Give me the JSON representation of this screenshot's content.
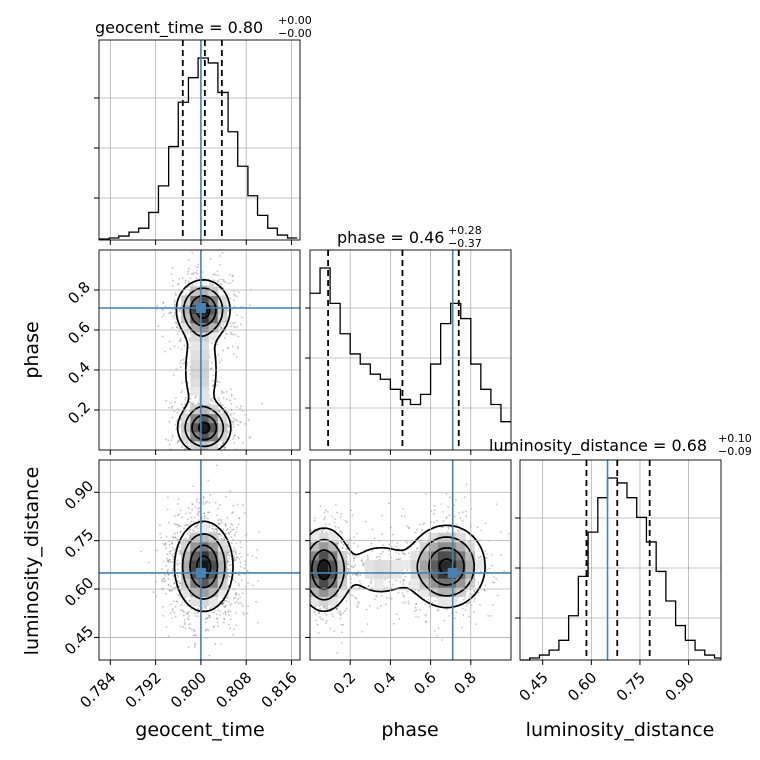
{
  "chart_data": {
    "type": "corner",
    "parameters": [
      "geocent_time",
      "phase",
      "luminosity_distance"
    ],
    "titles": [
      {
        "text": "geocent_time = 0.80",
        "plus": "+0.00",
        "minus": "−0.00"
      },
      {
        "text": "phase = 0.46",
        "plus": "+0.28",
        "minus": "−0.37"
      },
      {
        "text": "luminosity_distance = 0.68",
        "plus": "+0.10",
        "minus": "−0.09"
      }
    ],
    "truths": [
      0.8,
      0.71,
      0.65
    ],
    "truth_color": "#4682b4",
    "ranges": [
      [
        0.782,
        0.8175
      ],
      [
        0.0,
        1.0
      ],
      [
        0.38,
        1.0
      ]
    ],
    "ticks": {
      "geocent_time": [
        "0.784",
        "0.792",
        "0.800",
        "0.808",
        "0.816"
      ],
      "phase": [
        "0.2",
        "0.4",
        "0.6",
        "0.8"
      ],
      "luminosity_distance": [
        "0.45",
        "0.60",
        "0.75",
        "0.90"
      ]
    },
    "tick_values": {
      "geocent_time": [
        0.784,
        0.792,
        0.8,
        0.808,
        0.816
      ],
      "phase": [
        0.2,
        0.4,
        0.6,
        0.8
      ],
      "luminosity_distance": [
        0.45,
        0.6,
        0.75,
        0.9
      ]
    },
    "quantiles": {
      "geocent_time": [
        0.7968,
        0.8007,
        0.8037
      ],
      "phase": [
        0.09,
        0.46,
        0.74
      ],
      "luminosity_distance": [
        0.585,
        0.68,
        0.78
      ]
    },
    "histograms": {
      "geocent_time": {
        "edges": [
          0.782,
          0.7838,
          0.7855,
          0.7873,
          0.789,
          0.7908,
          0.7925,
          0.7943,
          0.796,
          0.7978,
          0.7995,
          0.8013,
          0.803,
          0.8048,
          0.8065,
          0.8083,
          0.81,
          0.8118,
          0.8135,
          0.8153,
          0.817
        ],
        "counts": [
          1,
          2,
          4,
          8,
          12,
          28,
          55,
          95,
          140,
          165,
          185,
          180,
          150,
          110,
          75,
          45,
          25,
          12,
          5,
          2
        ]
      },
      "phase": {
        "edges": [
          0.0,
          0.05,
          0.1,
          0.15,
          0.2,
          0.25,
          0.3,
          0.35,
          0.4,
          0.45,
          0.5,
          0.55,
          0.6,
          0.65,
          0.7,
          0.75,
          0.8,
          0.85,
          0.9,
          0.95,
          1.0
        ],
        "counts": [
          155,
          180,
          145,
          115,
          95,
          85,
          75,
          70,
          60,
          50,
          45,
          55,
          85,
          125,
          145,
          130,
          85,
          60,
          45,
          28
        ]
      },
      "luminosity_distance": {
        "edges": [
          0.38,
          0.41,
          0.44,
          0.47,
          0.5,
          0.53,
          0.56,
          0.59,
          0.62,
          0.65,
          0.68,
          0.71,
          0.74,
          0.77,
          0.8,
          0.83,
          0.86,
          0.89,
          0.92,
          0.95,
          0.98,
          1.0
        ],
        "counts": [
          0,
          2,
          5,
          10,
          20,
          45,
          85,
          130,
          165,
          185,
          180,
          165,
          145,
          120,
          90,
          60,
          35,
          20,
          10,
          5,
          2
        ]
      }
    },
    "density_2d": {
      "phase_vs_geocent_time": [
        {
          "x": 0.8004,
          "y": 0.7,
          "sx": 0.0022,
          "sy": 0.07,
          "w": 1.0
        },
        {
          "x": 0.8006,
          "y": 0.11,
          "sx": 0.0022,
          "sy": 0.06,
          "w": 0.95
        },
        {
          "x": 0.8,
          "y": 0.4,
          "sx": 0.0018,
          "sy": 0.13,
          "w": 0.3
        }
      ],
      "luminosity_distance_vs_geocent_time": [
        {
          "x": 0.8005,
          "y": 0.67,
          "sx": 0.0024,
          "sy": 0.065,
          "w": 1.0
        }
      ],
      "luminosity_distance_vs_phase": [
        {
          "x": 0.07,
          "y": 0.66,
          "sx": 0.06,
          "sy": 0.06,
          "w": 1.0
        },
        {
          "x": 0.68,
          "y": 0.67,
          "sx": 0.09,
          "sy": 0.06,
          "w": 0.95
        },
        {
          "x": 0.35,
          "y": 0.66,
          "sx": 0.1,
          "sy": 0.05,
          "w": 0.25
        }
      ]
    },
    "grid": true
  }
}
